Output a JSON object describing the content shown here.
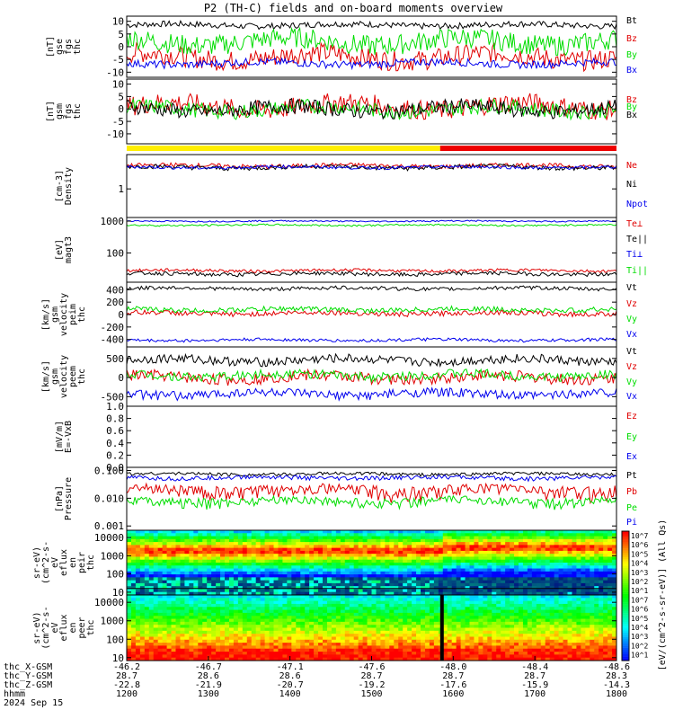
{
  "title": "P2 (TH-C) fields and on-board moments overview",
  "colors": {
    "black": "#000000",
    "red": "#e00000",
    "green": "#00dd00",
    "blue": "#0000ee",
    "yellow": "#ffee00",
    "bar_red": "#ee0000"
  },
  "chart_data": [
    {
      "type": "line",
      "id": "fgs-gse",
      "ylabel": [
        "thc",
        "fgs",
        "gse",
        "[nT]"
      ],
      "ylim": [
        -12,
        12
      ],
      "ticks": [
        10,
        5,
        0,
        -5,
        -10
      ],
      "series": [
        {
          "name": "Bt",
          "color": "black",
          "level": 8.5,
          "amp": 1.2
        },
        {
          "name": "Bz",
          "color": "red",
          "level": -4,
          "amp": 4
        },
        {
          "name": "By",
          "color": "green",
          "level": 2,
          "amp": 4
        },
        {
          "name": "Bx",
          "color": "blue",
          "level": -6.5,
          "amp": 1.5
        }
      ]
    },
    {
      "type": "line",
      "id": "fgs-gsm",
      "ylabel": [
        "thc",
        "fgs",
        "gsm",
        "[nT]"
      ],
      "ylim": [
        -14,
        12
      ],
      "ticks": [
        10,
        5,
        0,
        -5,
        -10
      ],
      "series": [
        {
          "name": "Bz",
          "color": "red",
          "level": 1,
          "amp": 4
        },
        {
          "name": "By",
          "color": "green",
          "level": 0,
          "amp": 3
        },
        {
          "name": "Bx",
          "color": "black",
          "level": 0,
          "amp": 3
        }
      ]
    },
    {
      "type": "line",
      "id": "density",
      "ylabel": [
        "Density",
        "[cm-3]"
      ],
      "ylim": [
        0.4,
        3
      ],
      "ticks": [
        1
      ],
      "log": true,
      "series": [
        {
          "name": "Ne",
          "color": "red",
          "level": 2.1,
          "amp": 0.15
        },
        {
          "name": "Ni",
          "color": "black",
          "level": 2.0,
          "amp": 0.15
        },
        {
          "name": "Npot",
          "color": "blue",
          "level": 2.0,
          "amp": 0.1
        }
      ]
    },
    {
      "type": "line",
      "id": "temperature",
      "ylabel": [
        "magt3",
        "[eV]"
      ],
      "ylim": [
        12,
        1300
      ],
      "ticks": [
        1000,
        100
      ],
      "log": true,
      "series": [
        {
          "name": "Te⊥",
          "color": "red",
          "level": 28,
          "amp": 3
        },
        {
          "name": "Te||",
          "color": "black",
          "level": 22,
          "amp": 3
        },
        {
          "name": "Ti⊥",
          "color": "blue",
          "level": 1000,
          "amp": 50
        },
        {
          "name": "Ti||",
          "color": "green",
          "level": 750,
          "amp": 50
        }
      ]
    },
    {
      "type": "line",
      "id": "peim-velocity",
      "ylabel": [
        "thc",
        "peim",
        "velocity",
        "gsm",
        "[km/s]"
      ],
      "ylim": [
        -520,
        520
      ],
      "ticks": [
        400,
        200,
        0,
        -200,
        -400
      ],
      "series": [
        {
          "name": "Vt",
          "color": "black",
          "level": 420,
          "amp": 30
        },
        {
          "name": "Vz",
          "color": "red",
          "level": 20,
          "amp": 40
        },
        {
          "name": "Vy",
          "color": "green",
          "level": 80,
          "amp": 40
        },
        {
          "name": "Vx",
          "color": "blue",
          "level": -410,
          "amp": 25
        }
      ]
    },
    {
      "type": "line",
      "id": "peem-velocity",
      "ylabel": [
        "thc",
        "peem",
        "velocity",
        "gsm",
        "[km/s]"
      ],
      "ylim": [
        -750,
        800
      ],
      "ticks": [
        500,
        0,
        -500
      ],
      "series": [
        {
          "name": "Vt",
          "color": "black",
          "level": 450,
          "amp": 120
        },
        {
          "name": "Vz",
          "color": "red",
          "level": 0,
          "amp": 150
        },
        {
          "name": "Vy",
          "color": "green",
          "level": 60,
          "amp": 120
        },
        {
          "name": "Vx",
          "color": "blue",
          "level": -430,
          "amp": 120
        }
      ]
    },
    {
      "type": "line",
      "id": "efield",
      "ylabel": [
        "E=-VxB",
        "[mV/m]"
      ],
      "ylim": [
        0,
        1
      ],
      "ticks": [
        "1.0",
        "0.8",
        "0.6",
        "0.4",
        "0.2",
        "0.0"
      ],
      "series": [
        {
          "name": "Ez",
          "color": "red"
        },
        {
          "name": "Ey",
          "color": "green"
        },
        {
          "name": "Ex",
          "color": "blue"
        }
      ]
    },
    {
      "type": "line",
      "id": "pressure",
      "ylabel": [
        "Pressure",
        "[nPa]"
      ],
      "ylim": [
        0.0007,
        0.13
      ],
      "ticks": [
        "0.100",
        "0.010",
        "0.001"
      ],
      "log": true,
      "series": [
        {
          "name": "Pt",
          "color": "black",
          "level": 0.075,
          "amp": 0.01
        },
        {
          "name": "Pb",
          "color": "red",
          "level": 0.02,
          "amp": 0.01
        },
        {
          "name": "Pe",
          "color": "green",
          "level": 0.008,
          "amp": 0.003
        },
        {
          "name": "Pi",
          "color": "blue",
          "level": 0.055,
          "amp": 0.01
        }
      ]
    },
    {
      "type": "heatmap",
      "id": "peir-spectrogram",
      "ylabel": [
        "thc",
        "peir",
        "en",
        "eflux",
        "eV",
        "(cm^2-s-",
        "sr-eV)"
      ],
      "ylim": [
        7,
        25000
      ],
      "ticks": [
        "10000",
        "1000",
        "100",
        "10"
      ],
      "log": true
    },
    {
      "type": "heatmap",
      "id": "peer-spectrogram",
      "ylabel": [
        "thc",
        "peer",
        "en",
        "eflux",
        "eV",
        "(cm^2-s-",
        "sr-eV)"
      ],
      "ylim": [
        7,
        25000
      ],
      "ticks": [
        "10000",
        "1000",
        "100",
        "10"
      ],
      "log": true
    }
  ],
  "colorbar": {
    "label": "[eV/(cm^2-s-sr-eV)] (All Qs)",
    "ticks": [
      "10^7",
      "10^6",
      "10^5",
      "10^4",
      "10^3",
      "10^2",
      "10^1",
      "10^7",
      "10^6",
      "10^5",
      "10^4",
      "10^3",
      "10^2",
      "10^1"
    ]
  },
  "x_axis": {
    "row_labels": [
      "thc_X-GSM",
      "thc_Y-GSM",
      "thc_Z-GSM",
      "hhmm",
      "2024 Sep 15"
    ],
    "ticks": [
      {
        "x": "-46.2",
        "y": "28.7",
        "z": "-22.8",
        "t": "1200"
      },
      {
        "x": "-46.7",
        "y": "28.6",
        "z": "-21.9",
        "t": "1300"
      },
      {
        "x": "-47.1",
        "y": "28.6",
        "z": "-20.7",
        "t": "1400"
      },
      {
        "x": "-47.6",
        "y": "28.7",
        "z": "-19.2",
        "t": "1500"
      },
      {
        "x": "-48.0",
        "y": "28.7",
        "z": "-17.6",
        "t": "1600"
      },
      {
        "x": "-48.4",
        "y": "28.7",
        "z": "-15.9",
        "t": "1700"
      },
      {
        "x": "-48.6",
        "y": "28.3",
        "z": "-14.3",
        "t": "1800"
      }
    ]
  }
}
